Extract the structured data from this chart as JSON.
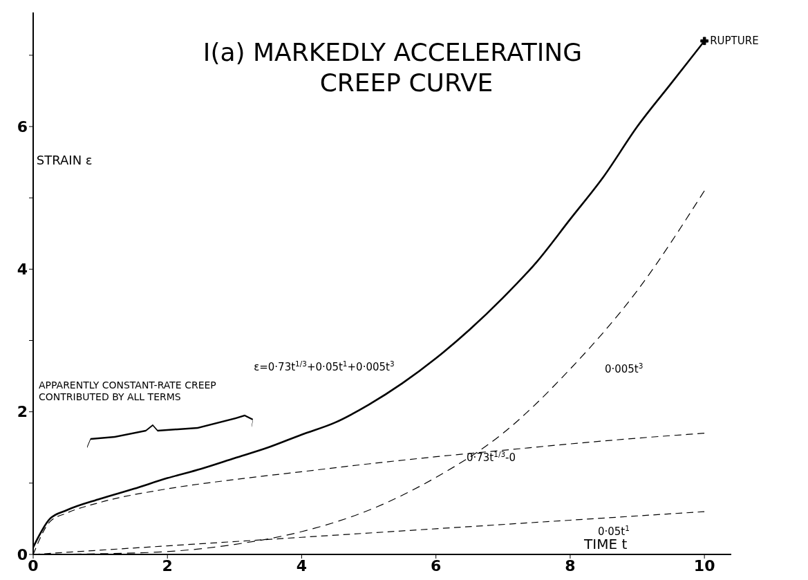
{
  "chart_data": {
    "type": "line",
    "title": "I(a) MARKEDLY ACCELERATING CREEP CURVE",
    "xlabel": "TIME t",
    "ylabel": "STRAIN ε",
    "xlim": [
      0,
      10.4
    ],
    "xticks": [
      0,
      2,
      4,
      6,
      8,
      10
    ],
    "ylim": [
      0,
      7.6
    ],
    "yticks": [
      0,
      {
        "value": 1,
        "label": null
      },
      2,
      {
        "value": 3,
        "label": null
      },
      4,
      {
        "value": 5,
        "label": null
      },
      6,
      {
        "value": 7,
        "label": null
      }
    ],
    "grid": false,
    "legend": false,
    "marker": "none",
    "series": [
      {
        "name": "ε=0·73t$^{1/3}$+0·05t$^{1}$+0·005t$^{3}$",
        "color": "#000000",
        "line_style": "solid",
        "x": [
          0,
          0.25,
          0.5,
          1,
          1.5,
          2,
          2.5,
          3,
          3.5,
          4,
          4.5,
          5,
          5.5,
          6,
          6.5,
          7,
          7.5,
          8,
          8.5,
          9,
          9.5,
          10
        ],
        "values": [
          0.1,
          0.5,
          0.62,
          0.78,
          0.92,
          1.07,
          1.2,
          1.35,
          1.5,
          1.68,
          1.85,
          2.1,
          2.4,
          2.75,
          3.15,
          3.6,
          4.1,
          4.7,
          5.3,
          6.0,
          6.6,
          7.2
        ]
      },
      {
        "name": "0·73t$^{1/3}$-0",
        "color": "#000000",
        "line_style": "dashed",
        "x": [
          0,
          0.25,
          0.5,
          1,
          2,
          3,
          4,
          5,
          6,
          7,
          8,
          9,
          10
        ],
        "values": [
          0,
          0.46,
          0.58,
          0.73,
          0.92,
          1.05,
          1.16,
          1.27,
          1.37,
          1.46,
          1.55,
          1.63,
          1.7
        ]
      },
      {
        "name": "0·05t$^{1}$",
        "color": "#000000",
        "line_style": "dashed",
        "x": [
          0,
          2,
          4,
          6,
          8,
          10
        ],
        "values": [
          0,
          0.12,
          0.24,
          0.36,
          0.48,
          0.6
        ]
      },
      {
        "name": "0·005t$^{3}$",
        "color": "#000000",
        "line_style": "dashed",
        "x": [
          0,
          1,
          2,
          3,
          4,
          5,
          6,
          7,
          8,
          9,
          10
        ],
        "values": [
          0,
          0.01,
          0.04,
          0.14,
          0.32,
          0.62,
          1.08,
          1.7,
          2.6,
          3.7,
          5.1
        ]
      },
      {
        "type": "scatter",
        "color": "#000000",
        "marker": "cross",
        "x": [
          10
        ],
        "values": [
          7.2
        ]
      }
    ],
    "annotations": [
      {
        "text": "RUPTURE",
        "x": 10,
        "y": 7.2
      },
      "APPARENTLY CONSTANT-RATE CREEP CONTRIBUTED BY ALL TERMS"
    ]
  }
}
